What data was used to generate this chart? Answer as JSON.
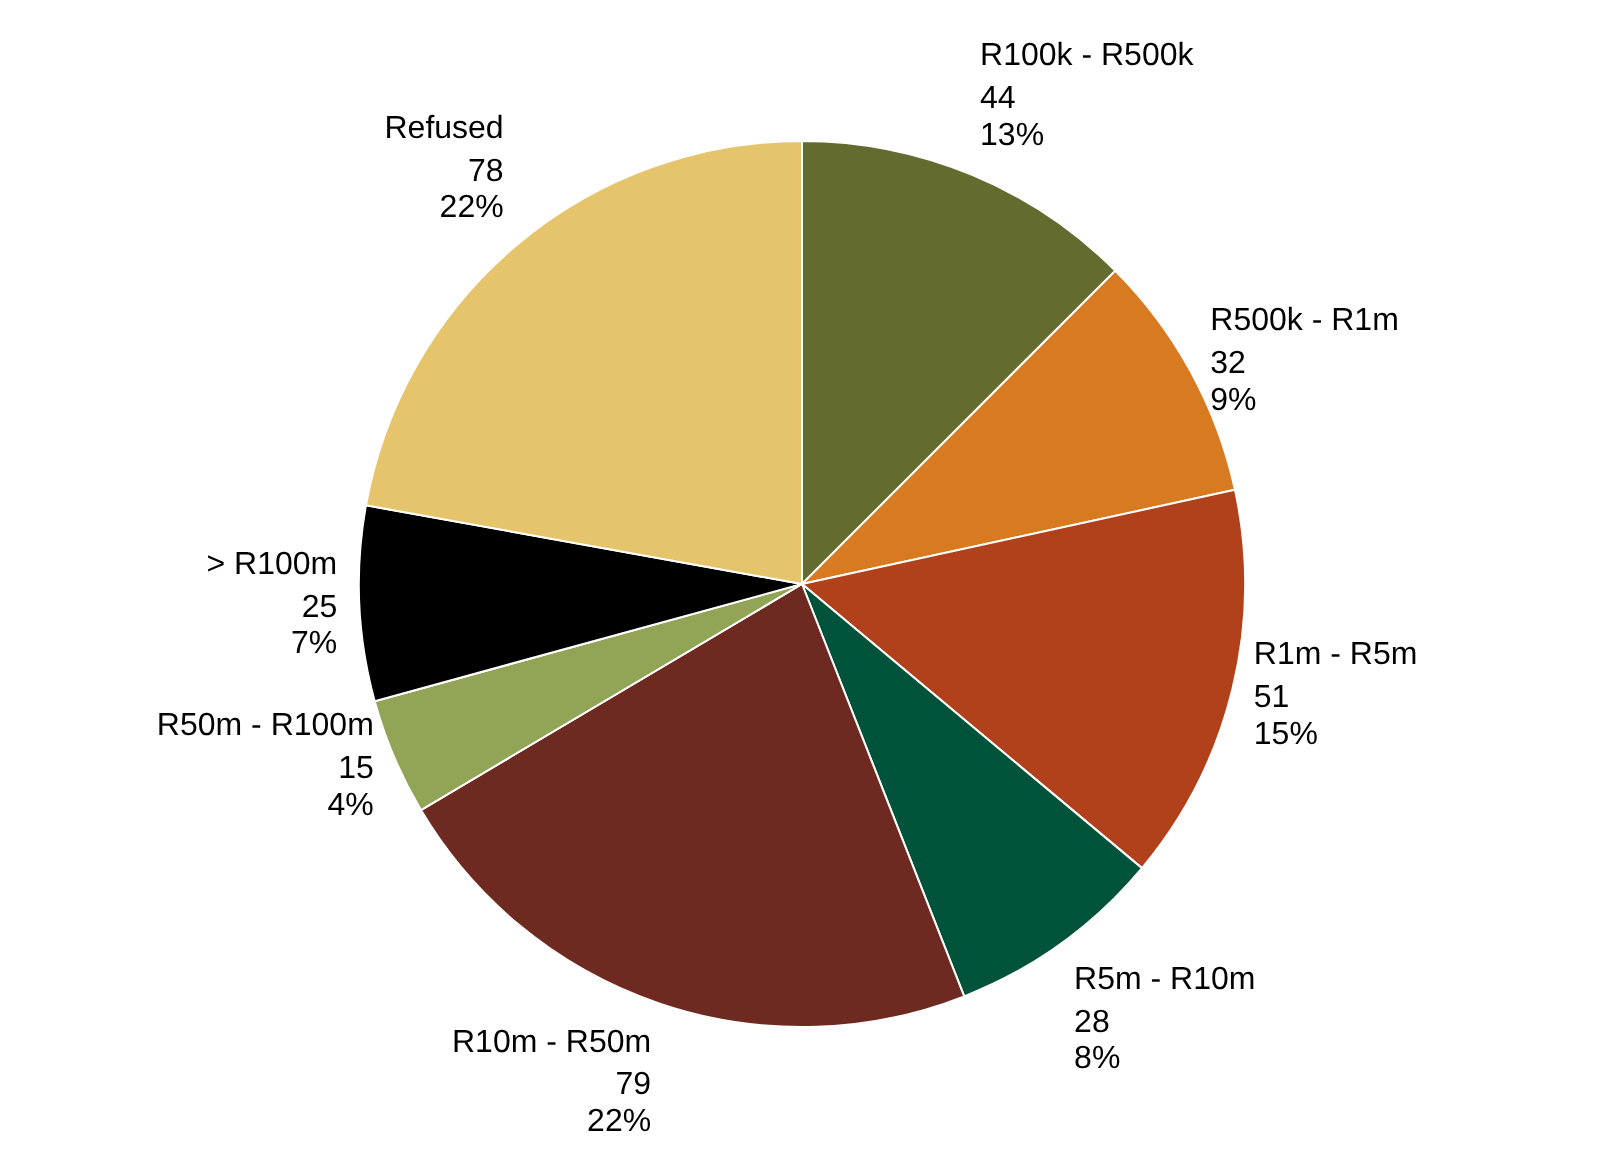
{
  "chart_data": {
    "type": "pie",
    "categories": [
      "R100k - R500k",
      "R500k - R1m",
      "R1m - R5m",
      "R5m - R10m",
      "R10m - R50m",
      "R50m - R100m",
      "> R100m",
      "Refused"
    ],
    "values": [
      44,
      32,
      51,
      28,
      79,
      15,
      25,
      78
    ],
    "value_labels": [
      "44\n13%",
      "32\n9%",
      "51\n15%",
      "28\n8%",
      "79\n22%",
      "15\n4%",
      "25\n7%",
      "78\n22%"
    ],
    "colors": [
      "#636b2f",
      "#d77a20",
      "#b0411a",
      "#00533b",
      "#6e2a20",
      "#92a455",
      "#000000",
      "#e5c46c"
    ]
  }
}
